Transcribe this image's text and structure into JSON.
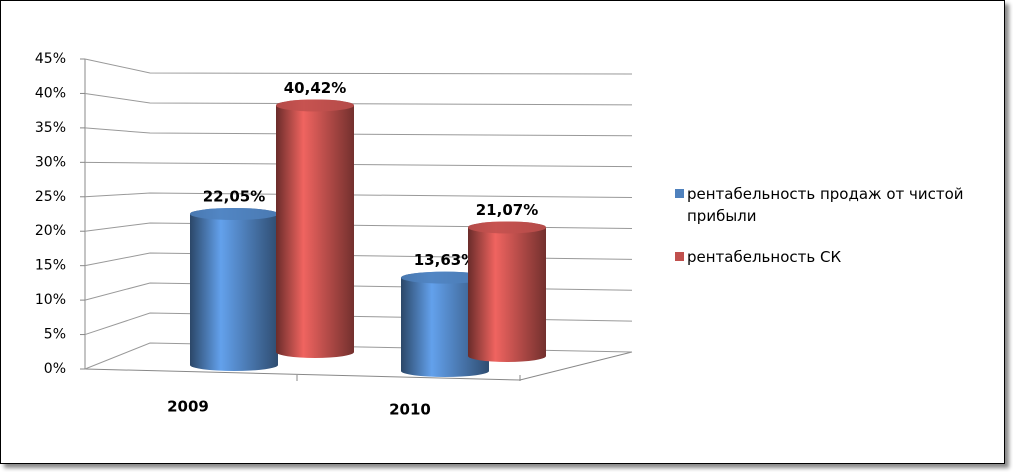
{
  "chart_data": {
    "type": "bar",
    "categories": [
      "2009",
      "2010"
    ],
    "series": [
      {
        "name": "рентабельность продаж от чистой прибыли",
        "color": "#4f81bd",
        "values": [
          22.05,
          13.63
        ],
        "value_labels": [
          "22,05%",
          "13,63%"
        ]
      },
      {
        "name": "рентабельность СК",
        "color": "#c0504d",
        "values": [
          40.42,
          21.07
        ],
        "value_labels": [
          "40,42%",
          "21,07%"
        ]
      }
    ],
    "ylim": [
      0,
      45
    ],
    "yticks": [
      {
        "value": 0,
        "label": "0%"
      },
      {
        "value": 5,
        "label": "5%"
      },
      {
        "value": 10,
        "label": "10%"
      },
      {
        "value": 15,
        "label": "15%"
      },
      {
        "value": 20,
        "label": "20%"
      },
      {
        "value": 25,
        "label": "25%"
      },
      {
        "value": 30,
        "label": "30%"
      },
      {
        "value": 35,
        "label": "35%"
      },
      {
        "value": 40,
        "label": "40%"
      },
      {
        "value": 45,
        "label": "45%"
      }
    ],
    "grid": true,
    "legend": "right"
  }
}
